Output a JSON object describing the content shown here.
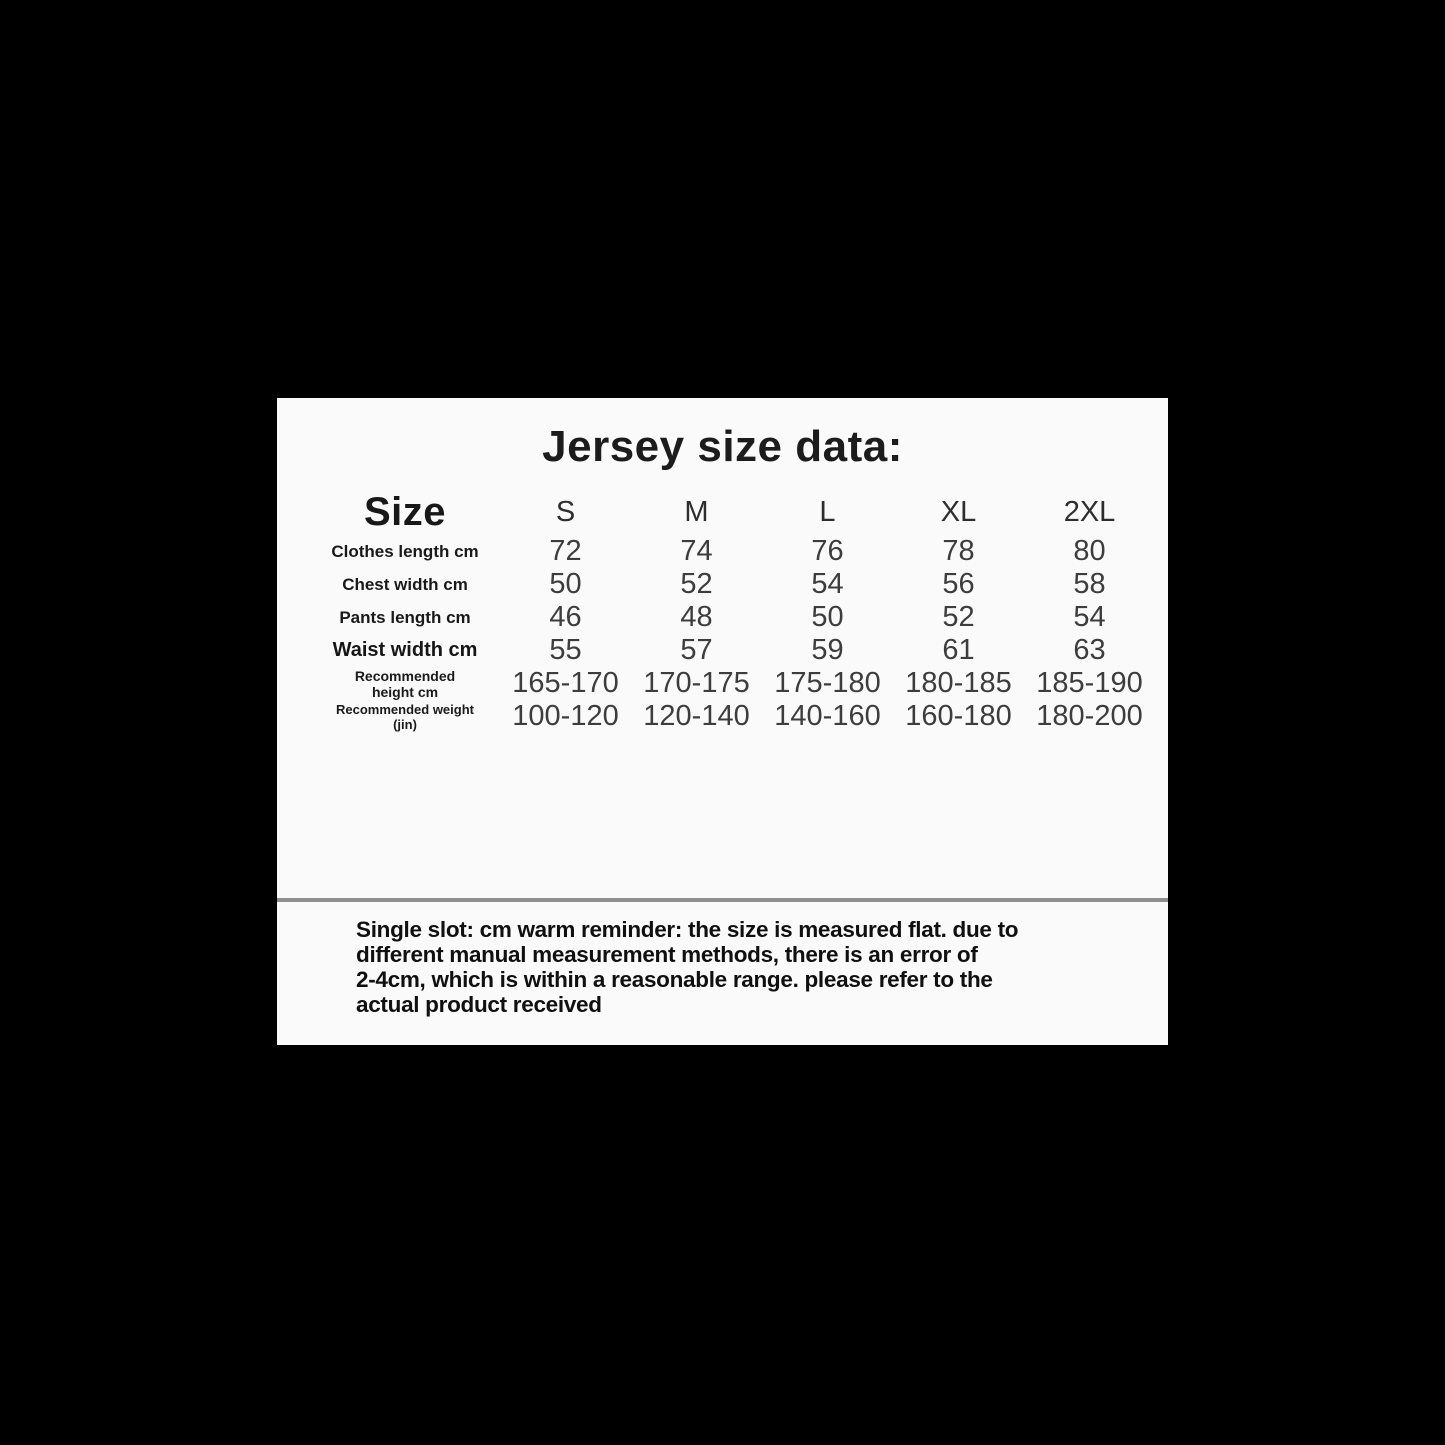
{
  "title": "Jersey size data:",
  "table": {
    "header": {
      "label": "Size",
      "sizes": [
        "S",
        "M",
        "L",
        "XL",
        "2XL"
      ]
    },
    "rows": [
      {
        "label": "Clothes length cm",
        "values": [
          "72",
          "74",
          "76",
          "78",
          "80"
        ]
      },
      {
        "label": "Chest width cm",
        "values": [
          "50",
          "52",
          "54",
          "56",
          "58"
        ]
      },
      {
        "label": "Pants length cm",
        "values": [
          "46",
          "48",
          "50",
          "52",
          "54"
        ]
      },
      {
        "label": "Waist width cm",
        "values": [
          "55",
          "57",
          "59",
          "61",
          "63"
        ]
      },
      {
        "label": "Recommended height cm",
        "values": [
          "165-170",
          "170-175",
          "175-180",
          "180-185",
          "185-190"
        ]
      },
      {
        "label": "Recommended weight (jin)",
        "values": [
          "100-120",
          "120-140",
          "140-160",
          "160-180",
          "180-200"
        ]
      }
    ]
  },
  "note": {
    "lines": [
      "Single slot: cm warm reminder: the size is measured flat. due to",
      "different manual measurement methods, there is an error of",
      "2-4cm, which is within a reasonable range. please refer to the",
      "actual product received"
    ]
  },
  "colors": {
    "page_background": "#000000",
    "card_background": "#fafafa",
    "divider": "#8f8f8f",
    "text": "#1a1a1a"
  }
}
